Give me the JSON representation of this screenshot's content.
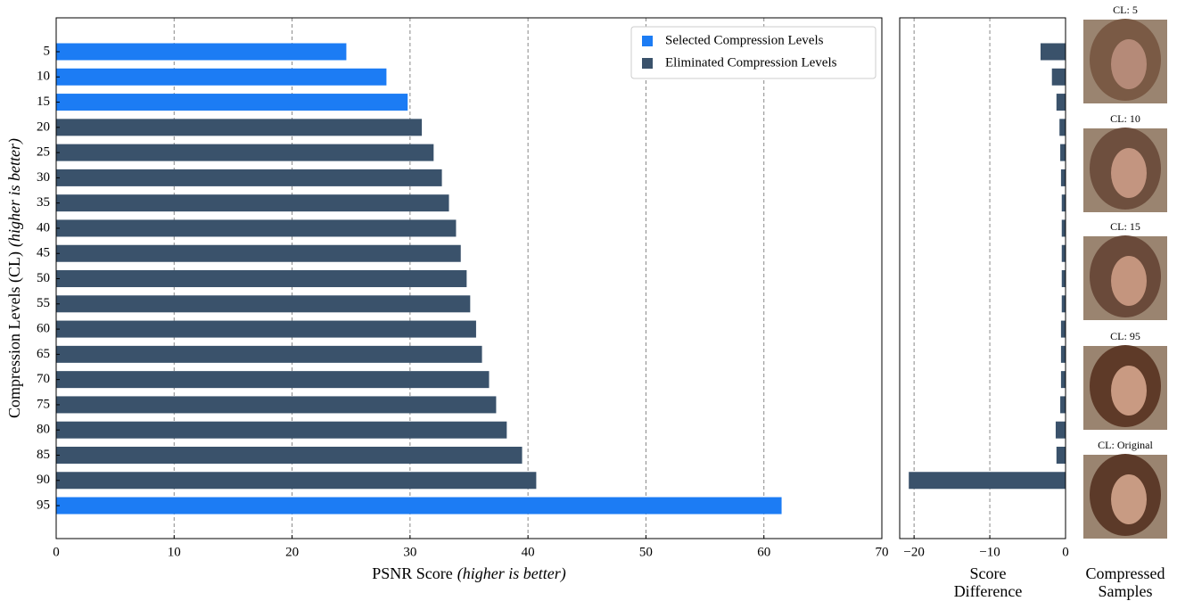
{
  "chart_data": [
    {
      "type": "bar",
      "orientation": "horizontal",
      "categories": [
        "5",
        "10",
        "15",
        "20",
        "25",
        "30",
        "35",
        "40",
        "45",
        "50",
        "55",
        "60",
        "65",
        "70",
        "75",
        "80",
        "85",
        "90",
        "95"
      ],
      "series": [
        {
          "name": "Selected Compression Levels",
          "color": "#1c7cf4",
          "values": [
            24.6,
            28.0,
            29.8,
            null,
            null,
            null,
            null,
            null,
            null,
            null,
            null,
            null,
            null,
            null,
            null,
            null,
            null,
            null,
            61.5
          ]
        },
        {
          "name": "Eliminated Compression Levels",
          "color": "#3a526b",
          "values": [
            null,
            null,
            null,
            31.0,
            32.0,
            32.7,
            33.3,
            33.9,
            34.3,
            34.8,
            35.1,
            35.6,
            36.1,
            36.7,
            37.3,
            38.2,
            39.5,
            40.7,
            null
          ]
        }
      ],
      "xlim": [
        0,
        70
      ],
      "xticks": [
        0,
        10,
        20,
        30,
        40,
        50,
        60,
        70
      ],
      "grid": true,
      "legend": "upper right",
      "xlabel": [
        "PSNR Score",
        "(higher is better)"
      ],
      "ylabel": [
        "Compression Levels (CL)",
        "(higher is better)"
      ]
    },
    {
      "type": "bar",
      "orientation": "horizontal",
      "color": "#3a526b",
      "values": [
        -3.3,
        -1.8,
        -1.2,
        -0.8,
        -0.7,
        -0.6,
        -0.5,
        -0.5,
        -0.5,
        -0.5,
        -0.5,
        -0.6,
        -0.6,
        -0.6,
        -0.7,
        -1.3,
        -1.2,
        -20.7,
        null
      ],
      "xlim": [
        -21.9,
        0
      ],
      "xticks": [
        {
          "value": -20,
          "label": "−20"
        },
        {
          "value": -10,
          "label": "−10"
        },
        0
      ],
      "grid": true,
      "xlabel": [
        "Score",
        "Difference"
      ]
    }
  ],
  "samples": {
    "captions": [
      "CL: 5",
      "CL: 10",
      "CL: 15",
      "CL: 95",
      "CL: Original"
    ],
    "xlabel": [
      "Compressed",
      "Samples"
    ]
  }
}
